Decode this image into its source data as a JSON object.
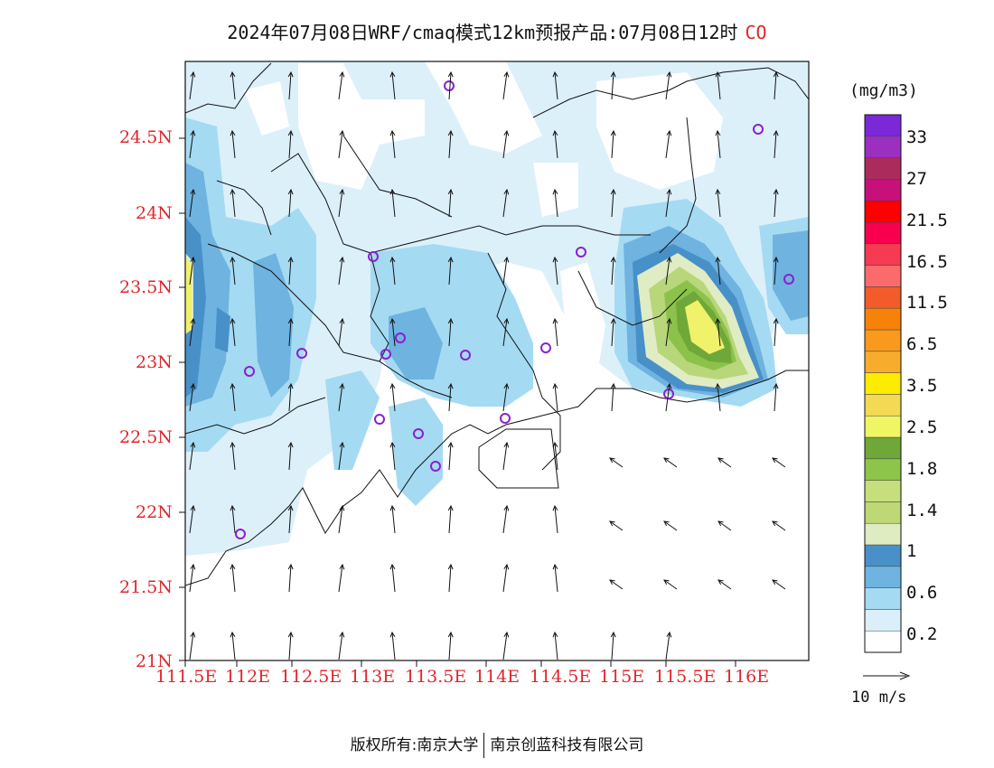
{
  "title": {
    "main": "2024年07月08日WRF/cmaq模式12km预报产品:07月08日12时",
    "species": "CO"
  },
  "map": {
    "y_ticks": [
      "24.5N",
      "24N",
      "23.5N",
      "23N",
      "22.5N",
      "22N",
      "21.5N",
      "21N"
    ],
    "x_ticks": [
      "111.5E",
      "112E",
      "112.5E",
      "113E",
      "113.5E",
      "114E",
      "114.5E",
      "115E",
      "115.5E",
      "116E"
    ],
    "tick_color": "#e0262b",
    "field_colors": {
      "level_0_2": "#dcf0fa",
      "level_0_6": "#a5daf3",
      "level_0_8": "#6fb3e0",
      "level_1": "#4890c8",
      "level_1_2": "#e0ecc4",
      "level_1_4": "#b8d67a",
      "level_1_8": "#8cc24a",
      "level_2_5": "#6fa838",
      "level_3_5": "#eff26a"
    },
    "stations_color": "#8a1fd0"
  },
  "colorbar": {
    "units": "(mg/m3)",
    "colors": [
      "#ffffff",
      "#dbeffb",
      "#a5daf3",
      "#6fb3e0",
      "#4a90c8",
      "#dfecc2",
      "#bdd874",
      "#c6df7c",
      "#8dc54a",
      "#6fa838",
      "#f0f564",
      "#f4da54",
      "#fdeb00",
      "#f8ac2e",
      "#fa9a1c",
      "#f7820a",
      "#f25c2a",
      "#fb6b6b",
      "#f53a52",
      "#f8004d",
      "#ff0000",
      "#c8107a",
      "#ac2b5d",
      "#9b2fc0",
      "#7b28d8"
    ],
    "labels": [
      "0.2",
      "0.6",
      "1",
      "1.4",
      "1.8",
      "2.5",
      "3.5",
      "6.5",
      "11.5",
      "16.5",
      "21.5",
      "27",
      "33"
    ]
  },
  "vector_reference": {
    "label": "10 m/s"
  },
  "footer": {
    "left": "版权所有:南京大学",
    "right": "南京创蓝科技有限公司"
  }
}
